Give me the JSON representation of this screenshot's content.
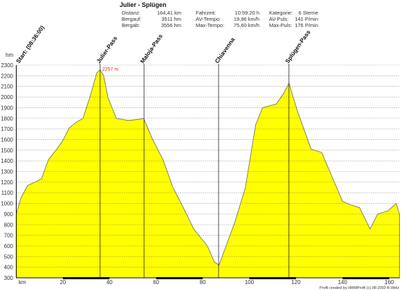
{
  "header": {
    "title": "Julier - Splügen",
    "stats": [
      [
        "Distanz:",
        "164,41 km",
        "Fahrzeit:",
        "10:59:20 h",
        "Kategorie:",
        "6 Sterne"
      ],
      [
        "Bergauf:",
        "3511 hm",
        "AV-Tempo:",
        "19,96 km/h",
        "AV-Puls:",
        "141 P/min"
      ],
      [
        "Bergab:",
        "3556 hm",
        "Max-Tempo:",
        "75,60 km/h",
        "Max-Puls:",
        "176 P/min"
      ]
    ]
  },
  "footer": "Profil created by HRMProfil (c) 98-2003 R.Welz",
  "colors": {
    "fill": "#ffff00",
    "line": "#666666",
    "peak": "#e03030"
  },
  "chart_data": {
    "type": "area",
    "title": "Julier - Splügen",
    "xlabel": "km",
    "ylabel": "hm",
    "xlim": [
      0,
      164.41
    ],
    "ylim": [
      300,
      2300
    ],
    "xticks": [
      20,
      40,
      60,
      80,
      100,
      120,
      140,
      160
    ],
    "yticks": [
      300,
      400,
      500,
      600,
      700,
      800,
      900,
      1000,
      1100,
      1200,
      1300,
      1400,
      1500,
      1600,
      1700,
      1800,
      1900,
      2000,
      2100,
      2200,
      2300
    ],
    "grid": true,
    "x": [
      0,
      2,
      4.9,
      8,
      10.8,
      13.8,
      17,
      19.7,
      22.7,
      25.5,
      28.6,
      31.6,
      34.6,
      36,
      37.5,
      39.3,
      42.9,
      48,
      52.4,
      54.7,
      58.3,
      63,
      67.2,
      71.7,
      76.1,
      82,
      85,
      87,
      89.5,
      93.9,
      98.3,
      102.7,
      105.7,
      111.6,
      114.6,
      117,
      120.6,
      126.5,
      131,
      135.5,
      140,
      143,
      147.3,
      151.8,
      155,
      159.5,
      163,
      164.41
    ],
    "y": [
      900,
      1050,
      1170,
      1200,
      1230,
      1410,
      1500,
      1580,
      1710,
      1760,
      1800,
      2000,
      2230,
      2257,
      2200,
      2000,
      1800,
      1780,
      1790,
      1800,
      1610,
      1410,
      1150,
      960,
      760,
      600,
      450,
      420,
      570,
      830,
      1150,
      1740,
      1900,
      1935,
      2030,
      2130,
      1870,
      1510,
      1480,
      1250,
      1020,
      990,
      960,
      760,
      900,
      930,
      1000,
      900
    ],
    "peak_label": "2257 m",
    "peak": {
      "x": 36,
      "y": 2257
    },
    "markers": [
      {
        "label": "Start: (08:36:00)",
        "x": 0
      },
      {
        "label": "Julier-Pass",
        "x": 36
      },
      {
        "label": "Maloja-Pass",
        "x": 54.8
      },
      {
        "label": "Chiavenna",
        "x": 86.8
      },
      {
        "label": "Splügen-Pass",
        "x": 117
      }
    ]
  }
}
